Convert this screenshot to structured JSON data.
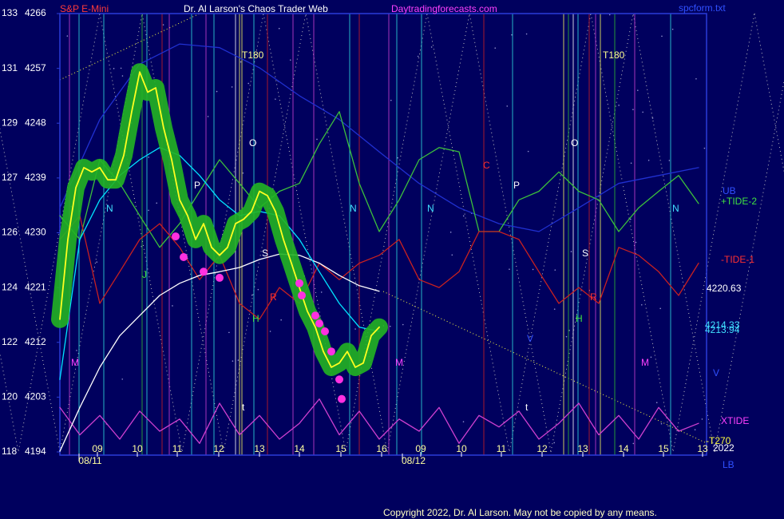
{
  "chart_data": {
    "type": "line",
    "instrument": "S&P E-Mini",
    "title": "Dr. Al Larson's Chaos Trader Web",
    "site": "Daytradingforecasts.com",
    "file": "spcform.txt",
    "copyright": "Copyright 2022, Dr. Al Larson. May not be copied by any means.",
    "xlim": [
      0,
      81
    ],
    "xticks": [
      {
        "value": 4.7,
        "label": "09"
      },
      {
        "value": 9.7,
        "label": "10"
      },
      {
        "value": 14.7,
        "label": "11"
      },
      {
        "value": 19.9,
        "label": "12"
      },
      {
        "value": 25.0,
        "label": "13"
      },
      {
        "value": 30.0,
        "label": "14"
      },
      {
        "value": 35.2,
        "label": "15"
      },
      {
        "value": 40.3,
        "label": "16"
      },
      {
        "value": 45.2,
        "label": "09"
      },
      {
        "value": 50.3,
        "label": "10"
      },
      {
        "value": 55.3,
        "label": "11"
      },
      {
        "value": 60.4,
        "label": "12"
      },
      {
        "value": 65.5,
        "label": "13"
      },
      {
        "value": 70.6,
        "label": "14"
      },
      {
        "value": 75.6,
        "label": "15"
      },
      {
        "value": 80.5,
        "label": "13"
      }
    ],
    "date_ticks": [
      {
        "value": 3.8,
        "label": "08/11"
      },
      {
        "value": 44.3,
        "label": "08/12"
      }
    ],
    "ylim": [
      4194,
      4266
    ],
    "yticks": [
      4194,
      4203,
      4212,
      4221,
      4230,
      4239,
      4248,
      4257,
      4266
    ],
    "ytick_alt_labels": [
      118,
      120,
      122,
      124,
      126,
      127,
      129,
      131,
      133
    ],
    "series": [
      {
        "color": "#2030d0",
        "x": [
          0,
          5,
          10,
          15,
          20,
          25,
          30,
          35,
          40,
          45,
          50,
          55,
          60,
          65,
          70,
          75,
          80
        ],
        "values": [
          4234.1,
          4248.6,
          4257.7,
          4261.0,
          4260.4,
          4257.1,
          4252.5,
          4248.6,
          4243.3,
          4238.1,
          4234.1,
          4231.5,
          4230.2,
          4234.1,
          4238.1,
          4239.4,
          4240.7
        ]
      },
      {
        "name": "+TIDE-2",
        "color": "#3cc03c",
        "x": [
          0,
          2.5,
          5,
          7.5,
          10,
          12.5,
          15,
          17.5,
          20,
          22.5,
          25,
          27.5,
          30,
          32.5,
          35,
          37.5,
          40,
          42.5,
          45,
          47.5,
          50,
          52.5,
          55,
          57.5,
          60,
          62.5,
          65,
          67.5,
          70,
          72.5,
          75,
          77.5,
          80
        ],
        "values": [
          4232.8,
          4228.9,
          4242.0,
          4238.1,
          4232.8,
          4227.6,
          4231.5,
          4236.8,
          4242.0,
          4238.1,
          4234.1,
          4236.8,
          4238.1,
          4244.6,
          4249.9,
          4238.1,
          4230.2,
          4235.4,
          4242.0,
          4244.0,
          4243.3,
          4230.2,
          4230.2,
          4235.4,
          4236.8,
          4240.0,
          4236.8,
          4235.4,
          4230.2,
          4234.1,
          4236.8,
          4239.4,
          4234.8
        ]
      },
      {
        "name": "-TIDE-1",
        "color": "#c82020",
        "x": [
          0,
          2.5,
          5,
          7.5,
          10,
          12.5,
          15,
          17.5,
          20,
          22.5,
          25,
          27.5,
          30,
          32.5,
          35,
          37.5,
          40,
          42.5,
          45,
          47.5,
          50,
          52.5,
          55,
          57.5,
          60,
          62.5,
          65,
          67.5,
          70,
          72.5,
          75,
          77.5,
          80
        ],
        "values": [
          4228.9,
          4232.8,
          4218.4,
          4223.6,
          4228.9,
          4231.5,
          4227.6,
          4222.3,
          4226.3,
          4218.4,
          4215.8,
          4221.0,
          4218.4,
          4225.0,
          4222.3,
          4225.0,
          4226.3,
          4228.9,
          4222.3,
          4221.0,
          4223.6,
          4230.2,
          4230.2,
          4228.9,
          4223.6,
          4218.4,
          4221.0,
          4218.4,
          4227.6,
          4226.3,
          4223.6,
          4219.7,
          4225.0
        ]
      },
      {
        "name": "XTIDE",
        "color": "#d040d0",
        "x": [
          0,
          2.5,
          5,
          7.5,
          10,
          12.5,
          15,
          17.5,
          20,
          22.5,
          25,
          27.5,
          30,
          32.5,
          35,
          37.5,
          40,
          42.5,
          45,
          47.5,
          50,
          52.5,
          55,
          57.5,
          60,
          62.5,
          65,
          67.5,
          70,
          72.5,
          75,
          77.5,
          80
        ],
        "values": [
          4201.3,
          4196.8,
          4200.0,
          4196.1,
          4200.7,
          4197.4,
          4199.4,
          4195.4,
          4202.0,
          4196.8,
          4200.0,
          4196.1,
          4198.7,
          4202.7,
          4196.8,
          4200.7,
          4196.1,
          4199.4,
          4197.4,
          4201.3,
          4195.4,
          4200.0,
          4198.1,
          4200.7,
          4196.1,
          4198.7,
          4202.0,
          4196.8,
          4200.0,
          4196.1,
          4201.3,
          4197.4,
          4198.7
        ]
      },
      {
        "color": "#ffffff",
        "x": [
          0,
          2.5,
          5,
          7.5,
          10,
          12.5,
          15,
          17.5,
          20,
          22.5,
          25,
          27.5,
          30,
          32.5,
          35,
          37.5,
          40
        ],
        "values": [
          4194.1,
          4201.3,
          4207.9,
          4213.1,
          4216.4,
          4219.7,
          4221.7,
          4223.0,
          4223.6,
          4224.3,
          4225.6,
          4226.5,
          4226.3,
          4225.0,
          4223.0,
          4221.3,
          4220.4
        ]
      },
      {
        "color": "#00e5ff",
        "x": [
          0,
          2.5,
          5,
          7.5,
          10,
          12.5,
          15,
          17.5,
          20,
          22.5,
          25,
          27.5,
          30,
          32.5,
          35,
          37.5,
          40
        ],
        "values": [
          4205.9,
          4228.9,
          4235.4,
          4239.4,
          4242.0,
          4244.0,
          4242.7,
          4239.4,
          4235.4,
          4232.8,
          4233.5,
          4232.8,
          4228.9,
          4223.6,
          4218.4,
          4214.5,
          4213.8
        ]
      },
      {
        "color": "#ffff20",
        "highlight": "#22b422",
        "x": [
          0,
          1,
          2,
          3,
          4,
          5,
          6,
          7,
          8,
          9,
          10,
          11,
          12,
          13,
          14,
          15,
          16,
          17,
          18,
          19,
          20,
          21,
          22,
          23,
          24,
          25,
          26,
          27,
          28,
          29,
          30,
          31,
          32,
          33,
          34,
          35,
          36,
          37,
          38,
          39,
          40
        ],
        "values": [
          4215.8,
          4228.9,
          4237.4,
          4240.7,
          4240.0,
          4240.7,
          4238.7,
          4238.7,
          4242.7,
          4249.9,
          4256.4,
          4253.1,
          4253.8,
          4247.2,
          4242.0,
          4235.4,
          4232.8,
          4228.9,
          4231.5,
          4227.6,
          4226.3,
          4227.6,
          4231.5,
          4232.2,
          4233.5,
          4236.8,
          4236.1,
          4233.5,
          4228.9,
          4225.0,
          4221.0,
          4217.1,
          4214.5,
          4210.5,
          4207.9,
          4208.6,
          4210.5,
          4207.9,
          4208.6,
          4213.1,
          4214.5
        ]
      }
    ],
    "markers": {
      "color": "#ff30e0",
      "x": [
        14.5,
        15.5,
        18,
        20,
        30,
        30.3,
        32,
        32.5,
        33.2,
        34,
        35,
        35.3
      ],
      "values": [
        4229.4,
        4226.0,
        4223.6,
        4222.6,
        4221.7,
        4219.7,
        4216.4,
        4215.1,
        4213.8,
        4210.5,
        4205.9,
        4202.7
      ]
    },
    "right_labels": [
      "UB",
      "+TIDE-2",
      "-TIDE-1",
      "4220.63",
      "4214.33",
      "4213.94",
      "V",
      "XTIDE",
      "-T270",
      "2022",
      "LB"
    ],
    "annotations": [
      "T180",
      "T180",
      "O",
      "O",
      "P",
      "P",
      "N",
      "N",
      "N",
      "N",
      "M",
      "M",
      "M",
      "S",
      "S",
      "R",
      "R",
      "H",
      "H",
      "t",
      "t",
      "C",
      "J",
      "V"
    ]
  }
}
